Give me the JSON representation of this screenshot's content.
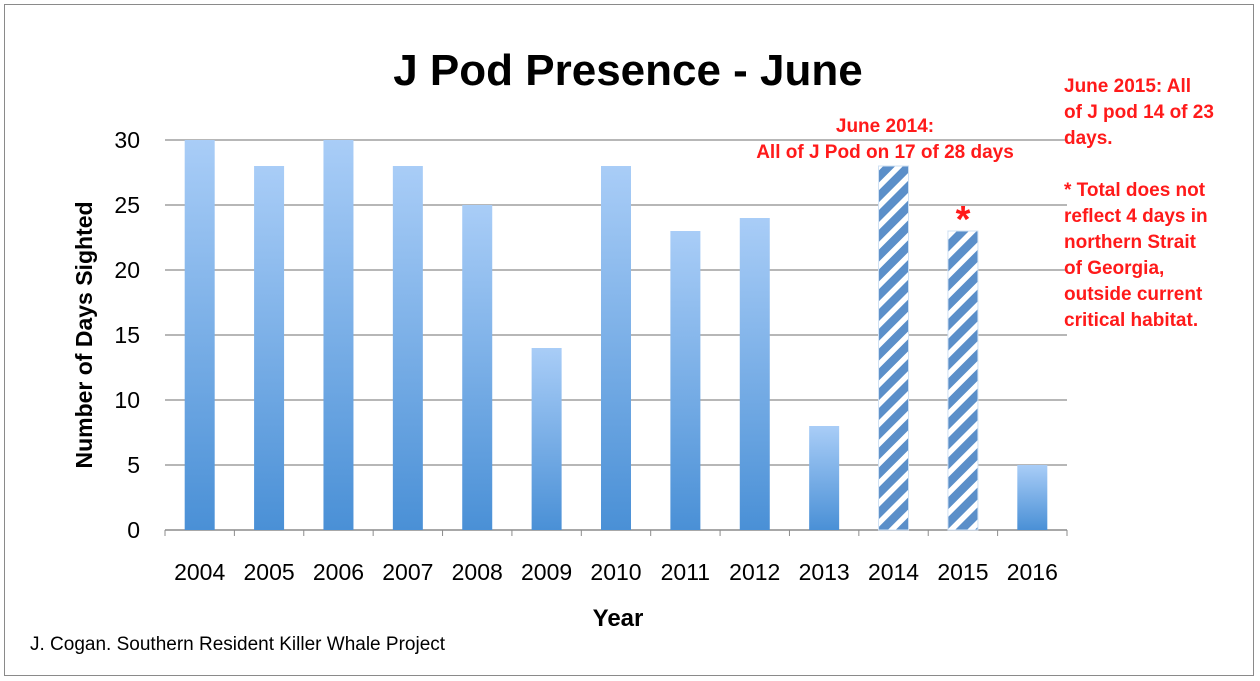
{
  "chart_data": {
    "type": "bar",
    "title": "J Pod Presence - June",
    "xlabel": "Year",
    "ylabel": "Number of Days Sighted",
    "ylim": [
      0,
      30
    ],
    "yticks": [
      0,
      5,
      10,
      15,
      20,
      25,
      30
    ],
    "grid": true,
    "categories": [
      "2004",
      "2005",
      "2006",
      "2007",
      "2008",
      "2009",
      "2010",
      "2011",
      "2012",
      "2013",
      "2014",
      "2015",
      "2016"
    ],
    "values": [
      30,
      28,
      30,
      28,
      25,
      14,
      28,
      23,
      24,
      8,
      28,
      23,
      5
    ],
    "hatched": [
      false,
      false,
      false,
      false,
      false,
      false,
      false,
      false,
      false,
      false,
      true,
      true,
      false
    ],
    "colors": {
      "bar_top": "#a9cdf7",
      "bar_bottom": "#4a90d6",
      "hatch": "#5b8fc9",
      "annotation": "#ff1a1a",
      "grid": "#8c8c8c"
    },
    "annotations": {
      "june2014_line1": "June 2014:",
      "june2014_line2": "All of J Pod on 17 of 28 days",
      "asterisk": "*",
      "june2015_lines": [
        "June 2015:  All",
        "of J pod 14 of 23",
        "days."
      ],
      "note_lines": [
        "* Total does not",
        "reflect 4 days in",
        "northern Strait",
        "of Georgia,",
        "outside current",
        "critical habitat."
      ]
    },
    "credit": "J. Cogan.  Southern Resident Killer Whale Project"
  }
}
